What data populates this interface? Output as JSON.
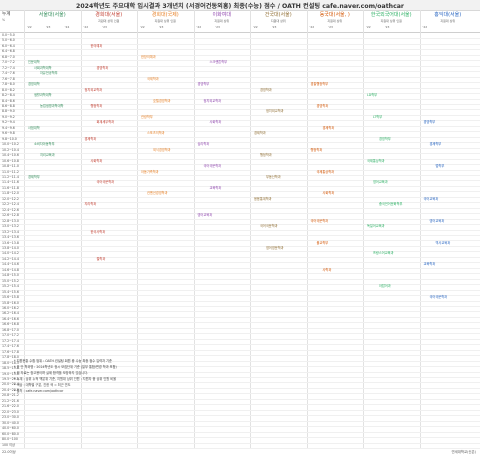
{
  "title": "2024학년도 주요대학 입시결과 3개년치 (서경어건동외홍) 최종(수능) 점수 / OATH 컨설팅 cafe.naver.com/oathcar",
  "row_header": {
    "label": "누계",
    "sub": "%"
  },
  "colors": {
    "accent_red": "#c0392b",
    "accent_orange": "#e67e22",
    "accent_green": "#2e8b57",
    "accent_purple": "#8e44ad",
    "accent_blue": "#1f5fbf"
  },
  "universities": [
    {
      "name": "서울대(서울)",
      "sub": "",
      "bands": [
        "'22",
        "'23",
        "'24"
      ],
      "color": "#2e8b57"
    },
    {
      "name": "경희대(서울)",
      "sub": "지원대 상위 인원",
      "bands": [
        "'22",
        "'23"
      ],
      "color": "#c0392b"
    },
    {
      "name": "경희대(국제)",
      "sub": "지원대 상위 인원",
      "bands": [
        "'22",
        "'23"
      ],
      "color": "#e67e22"
    },
    {
      "name": "이화여대",
      "sub": "지원대 상위",
      "bands": [
        "'22",
        "'23"
      ],
      "color": "#8e44ad"
    },
    {
      "name": "건국대(서울)",
      "sub": "지원대 상위",
      "bands": [
        "'22",
        "'23"
      ],
      "color": "#8e6b2f"
    },
    {
      "name": "동국대(서울, )",
      "sub": "지원대 상위",
      "bands": [
        "'22",
        "'23"
      ],
      "color": "#d35400"
    },
    {
      "name": "한국외국어대(서울)",
      "sub": "지원대 상위 인원",
      "bands": [
        "'22",
        "'23"
      ],
      "color": "#27ae60"
    },
    {
      "name": "홍익대(서울)",
      "sub": "지원대 상위",
      "bands": [
        "'22"
      ],
      "color": "#1f5fbf"
    }
  ],
  "rows": [
    "0.0~5.0",
    "5.0~6.0",
    "6.0~6.4",
    "6.4~6.8",
    "6.8~7.0",
    "7.0~7.2",
    "7.2~7.4",
    "7.4~7.6",
    "7.6~7.8",
    "7.8~8.0",
    "8.0~8.2",
    "8.2~8.4",
    "8.4~8.6",
    "8.6~8.8",
    "8.8~9.0",
    "9.0~9.2",
    "9.2~9.4",
    "9.4~9.6",
    "9.6~9.8",
    "9.8~10.0",
    "10.0~10.2",
    "10.2~10.4",
    "10.4~10.6",
    "10.6~10.8",
    "10.8~11.0",
    "11.0~11.2",
    "11.2~11.4",
    "11.4~11.6",
    "11.6~11.8",
    "11.8~12.0",
    "12.0~12.2",
    "12.2~12.4",
    "12.4~12.6",
    "12.6~12.8",
    "12.8~13.0",
    "13.0~13.2",
    "13.2~13.4",
    "13.4~13.6",
    "13.6~13.8",
    "13.8~14.0",
    "14.0~14.2",
    "14.2~14.4",
    "14.4~14.6",
    "14.6~14.8",
    "14.8~15.0",
    "15.0~15.2",
    "15.2~15.4",
    "15.4~15.6",
    "15.6~15.8",
    "15.8~16.0",
    "16.0~16.2",
    "16.2~16.4",
    "16.4~16.6",
    "16.6~16.8",
    "16.8~17.0",
    "17.0~17.2",
    "17.2~17.4",
    "17.4~17.6",
    "17.6~17.8",
    "17.8~18.0",
    "18.0~18.5",
    "18.5~19.0",
    "19.0~19.5",
    "19.5~20.0",
    "20.0~20.4",
    "20.4~20.8",
    "20.8~21.2",
    "21.2~21.6",
    "21.6~22.0",
    "22.0~23.0",
    "23.0~30.0",
    "30.0~40.0",
    "40.0~60.0",
    "60.0~80.0",
    "80.0~100",
    "100 이상"
  ],
  "events": [
    {
      "row": 5,
      "col": 0,
      "text": "인문대학",
      "color": "#2e8b57"
    },
    {
      "row": 6,
      "col": 0,
      "text": "사회과학대학",
      "color": "#2e8b57"
    },
    {
      "row": 7,
      "col": 0,
      "text": "자유전공학부",
      "color": "#2e8b57"
    },
    {
      "row": 9,
      "col": 0,
      "text": "경영대학",
      "color": "#2e8b57"
    },
    {
      "row": 11,
      "col": 0,
      "text": "생활과학대학",
      "color": "#2e8b57"
    },
    {
      "row": 13,
      "col": 0,
      "text": "농업생명과학대학",
      "color": "#2e8b57"
    },
    {
      "row": 17,
      "col": 0,
      "text": "사범대학",
      "color": "#2e8b57"
    },
    {
      "row": 20,
      "col": 0,
      "text": "소비자아동학부",
      "color": "#2e8b57"
    },
    {
      "row": 22,
      "col": 0,
      "text": "지리교육과",
      "color": "#2e8b57"
    },
    {
      "row": 26,
      "col": 0,
      "text": "경제학부",
      "color": "#2e8b57"
    },
    {
      "row": 2,
      "col": 1,
      "text": "한의예과",
      "color": "#c0392b"
    },
    {
      "row": 6,
      "col": 1,
      "text": "경영학과",
      "color": "#c0392b"
    },
    {
      "row": 10,
      "col": 1,
      "text": "정치외교학과",
      "color": "#c0392b"
    },
    {
      "row": 13,
      "col": 1,
      "text": "행정학과",
      "color": "#c0392b"
    },
    {
      "row": 16,
      "col": 1,
      "text": "회계세무학과",
      "color": "#c0392b"
    },
    {
      "row": 19,
      "col": 1,
      "text": "경제학과",
      "color": "#c0392b"
    },
    {
      "row": 23,
      "col": 1,
      "text": "사회학과",
      "color": "#c0392b"
    },
    {
      "row": 27,
      "col": 1,
      "text": "국어국문학과",
      "color": "#c0392b"
    },
    {
      "row": 31,
      "col": 1,
      "text": "지리학과",
      "color": "#c0392b"
    },
    {
      "row": 36,
      "col": 1,
      "text": "한국사학과",
      "color": "#c0392b"
    },
    {
      "row": 41,
      "col": 1,
      "text": "철학과",
      "color": "#c0392b"
    },
    {
      "row": 4,
      "col": 2,
      "text": "한방의예과",
      "color": "#e67e22"
    },
    {
      "row": 8,
      "col": 2,
      "text": "국제학과",
      "color": "#e67e22"
    },
    {
      "row": 12,
      "col": 2,
      "text": "호텔경영학과",
      "color": "#e67e22"
    },
    {
      "row": 15,
      "col": 2,
      "text": "관광학부",
      "color": "#e67e22"
    },
    {
      "row": 18,
      "col": 2,
      "text": "스포츠의학과",
      "color": "#e67e22"
    },
    {
      "row": 21,
      "col": 2,
      "text": "외식경영학과",
      "color": "#e67e22"
    },
    {
      "row": 25,
      "col": 2,
      "text": "아동가족학과",
      "color": "#e67e22"
    },
    {
      "row": 29,
      "col": 2,
      "text": "컨벤션경영학과",
      "color": "#e67e22"
    },
    {
      "row": 5,
      "col": 3,
      "text": "스크랜튼학부",
      "color": "#8e44ad"
    },
    {
      "row": 9,
      "col": 3,
      "text": "경영학부",
      "color": "#8e44ad"
    },
    {
      "row": 12,
      "col": 3,
      "text": "정치외교학과",
      "color": "#8e44ad"
    },
    {
      "row": 16,
      "col": 3,
      "text": "사회학과",
      "color": "#8e44ad"
    },
    {
      "row": 20,
      "col": 3,
      "text": "심리학과",
      "color": "#8e44ad"
    },
    {
      "row": 24,
      "col": 3,
      "text": "국어국문학과",
      "color": "#8e44ad"
    },
    {
      "row": 28,
      "col": 3,
      "text": "교육학과",
      "color": "#8e44ad"
    },
    {
      "row": 33,
      "col": 3,
      "text": "영어교육과",
      "color": "#8e44ad"
    },
    {
      "row": 10,
      "col": 4,
      "text": "경영학과",
      "color": "#8e6b2f"
    },
    {
      "row": 14,
      "col": 4,
      "text": "정치외교학과",
      "color": "#8e6b2f"
    },
    {
      "row": 18,
      "col": 4,
      "text": "경제학과",
      "color": "#8e6b2f"
    },
    {
      "row": 22,
      "col": 4,
      "text": "행정학과",
      "color": "#8e6b2f"
    },
    {
      "row": 26,
      "col": 4,
      "text": "부동산학과",
      "color": "#8e6b2f"
    },
    {
      "row": 30,
      "col": 4,
      "text": "응용통계학과",
      "color": "#8e6b2f"
    },
    {
      "row": 35,
      "col": 4,
      "text": "국어국문학과",
      "color": "#8e6b2f"
    },
    {
      "row": 39,
      "col": 4,
      "text": "영어영문학과",
      "color": "#8e6b2f"
    },
    {
      "row": 9,
      "col": 5,
      "text": "경찰행정학부",
      "color": "#d35400"
    },
    {
      "row": 13,
      "col": 5,
      "text": "경영학과",
      "color": "#d35400"
    },
    {
      "row": 17,
      "col": 5,
      "text": "경제학과",
      "color": "#d35400"
    },
    {
      "row": 21,
      "col": 5,
      "text": "행정학과",
      "color": "#d35400"
    },
    {
      "row": 25,
      "col": 5,
      "text": "국제통상학과",
      "color": "#d35400"
    },
    {
      "row": 29,
      "col": 5,
      "text": "사회학과",
      "color": "#d35400"
    },
    {
      "row": 34,
      "col": 5,
      "text": "국어국문학과",
      "color": "#d35400"
    },
    {
      "row": 38,
      "col": 5,
      "text": "불교학부",
      "color": "#d35400"
    },
    {
      "row": 43,
      "col": 5,
      "text": "사학과",
      "color": "#d35400"
    },
    {
      "row": 11,
      "col": 6,
      "text": "LD학부",
      "color": "#27ae60"
    },
    {
      "row": 15,
      "col": 6,
      "text": "LT학부",
      "color": "#27ae60"
    },
    {
      "row": 19,
      "col": 6,
      "text": "경영학부",
      "color": "#27ae60"
    },
    {
      "row": 23,
      "col": 6,
      "text": "국제통상학과",
      "color": "#27ae60"
    },
    {
      "row": 27,
      "col": 6,
      "text": "영어교육과",
      "color": "#27ae60"
    },
    {
      "row": 31,
      "col": 6,
      "text": "중국언어문화학부",
      "color": "#27ae60"
    },
    {
      "row": 35,
      "col": 6,
      "text": "독일어교육과",
      "color": "#27ae60"
    },
    {
      "row": 40,
      "col": 6,
      "text": "프랑스어교육과",
      "color": "#27ae60"
    },
    {
      "row": 46,
      "col": 6,
      "text": "아랍어과",
      "color": "#27ae60"
    },
    {
      "row": 16,
      "col": 7,
      "text": "경영학부",
      "color": "#1f5fbf"
    },
    {
      "row": 20,
      "col": 7,
      "text": "경제학부",
      "color": "#1f5fbf"
    },
    {
      "row": 24,
      "col": 7,
      "text": "법학부",
      "color": "#1f5fbf"
    },
    {
      "row": 30,
      "col": 7,
      "text": "국어교육과",
      "color": "#1f5fbf"
    },
    {
      "row": 34,
      "col": 7,
      "text": "영어교육과",
      "color": "#1f5fbf"
    },
    {
      "row": 38,
      "col": 7,
      "text": "역사교육과",
      "color": "#1f5fbf"
    },
    {
      "row": 42,
      "col": 7,
      "text": "교육학과",
      "color": "#1f5fbf"
    },
    {
      "row": 48,
      "col": 7,
      "text": "국어국문학과",
      "color": "#1f5fbf"
    }
  ],
  "notes": [
    "* 지원현황 수합 범위 : OATH 컨설팅 회원 중 수능 최종 점수 입력자 기준",
    "* 표 안 학과명 : 2024학년도 정시 모집단위 기준 (일부 통합/변경 학과 포함)",
    "* 위 자료는 참고용이며 실제 합격을 보장하지 않습니다.",
    "* 누계 : 상위 누적 백분위 기준, 지원대 상위 인원 : 지원자 중 상위 인원 비율",
    "* 색상 : 대학별 구분, 진한 색 = 최근 연도",
    "* 출처 : cafe.naver.com/oathcar"
  ],
  "footer": {
    "left": "22.0이상",
    "right": "연세대학교(신촌)"
  }
}
